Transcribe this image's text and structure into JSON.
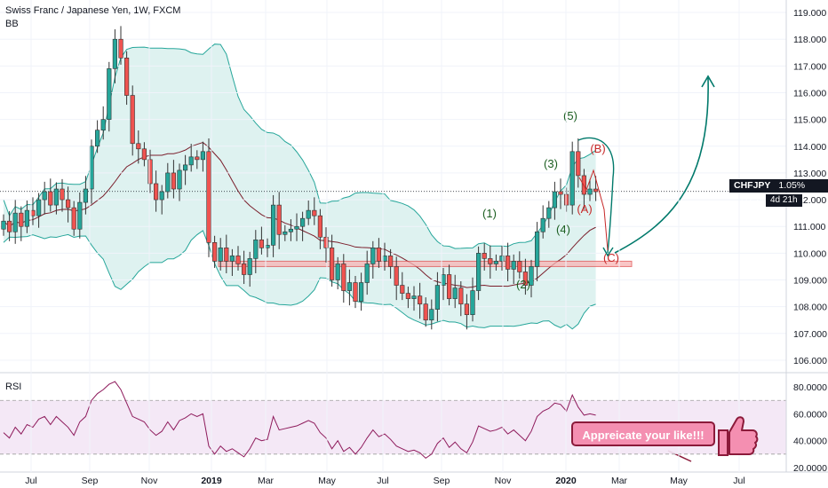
{
  "header": {
    "title": "Swiss Franc / Japanese Yen, 1W, FXCM",
    "indicator": "BB",
    "rsi_label": "RSI"
  },
  "price_badge": {
    "symbol": "CHFJPY",
    "change": "1.05%",
    "price": "112.309"
  },
  "time_badge": "4d 21h",
  "callout": "Appreicate your like!!!",
  "colors": {
    "up": "#26a69a",
    "down": "#ef5350",
    "band_fill": "#d6efec",
    "band_line": "#26a69a",
    "basis": "#7b1f2c",
    "zone_fill": "#f8b4b4",
    "zone_stroke": "#e04b4b",
    "wave_green": "#1b5e20",
    "wave_red": "#c62828",
    "arrow_teal": "#00796b",
    "rsi_line": "#8e1b5c",
    "rsi_bg": "#f3e5f5"
  },
  "icons": {
    "like": "thumbs-up-icon"
  },
  "chart_data": {
    "type": "candlestick",
    "title": "Swiss Franc / Japanese Yen, 1W, FXCM",
    "symbol": "CHFJPY",
    "timeframe": "1W",
    "source": "FXCM",
    "last_price": 112.309,
    "x_tick_labels": [
      "Jul",
      "Sep",
      "Nov",
      "2019",
      "Mar",
      "May",
      "Jul",
      "Sep",
      "Nov",
      "2020",
      "Mar",
      "May",
      "Jul"
    ],
    "y_tick_labels": [
      "119.000",
      "118.000",
      "117.000",
      "116.000",
      "115.000",
      "114.000",
      "113.000",
      "112.000",
      "111.000",
      "110.000",
      "109.000",
      "108.000",
      "107.000",
      "106.000"
    ],
    "ylim": [
      105.6,
      119.4
    ],
    "close": [
      111.2,
      110.8,
      111.5,
      111.0,
      111.6,
      111.4,
      112.0,
      112.3,
      111.8,
      112.4,
      112.0,
      111.7,
      110.9,
      111.9,
      112.4,
      114.0,
      114.6,
      115.0,
      116.9,
      118.0,
      117.3,
      115.9,
      114.1,
      113.9,
      113.5,
      112.6,
      112.0,
      112.3,
      113.0,
      112.4,
      113.1,
      113.3,
      113.6,
      113.5,
      113.8,
      110.4,
      109.7,
      110.2,
      109.7,
      109.9,
      109.6,
      109.2,
      109.8,
      110.5,
      110.2,
      110.3,
      111.8,
      110.7,
      110.8,
      110.9,
      111.0,
      111.3,
      111.6,
      111.4,
      110.6,
      110.2,
      109.0,
      109.6,
      108.6,
      108.9,
      108.2,
      108.9,
      109.6,
      110.2,
      109.7,
      109.9,
      109.5,
      108.8,
      108.5,
      108.3,
      108.4,
      108.1,
      107.5,
      107.9,
      108.8,
      109.2,
      108.3,
      108.7,
      108.1,
      107.7,
      108.6,
      110.0,
      109.8,
      109.6,
      109.7,
      109.9,
      109.4,
      109.7,
      109.3,
      108.8,
      109.5,
      110.8,
      111.3,
      111.7,
      112.3,
      112.2,
      111.8,
      113.8,
      112.9,
      112.2,
      112.4,
      112.3
    ],
    "rsi": [
      46,
      42,
      50,
      45,
      52,
      50,
      56,
      58,
      52,
      58,
      54,
      50,
      44,
      54,
      58,
      70,
      75,
      78,
      82,
      84,
      78,
      68,
      58,
      56,
      54,
      48,
      44,
      47,
      54,
      48,
      55,
      57,
      60,
      58,
      60,
      36,
      30,
      36,
      32,
      34,
      31,
      28,
      34,
      42,
      40,
      41,
      58,
      48,
      49,
      50,
      51,
      53,
      55,
      53,
      46,
      42,
      34,
      40,
      32,
      35,
      30,
      35,
      42,
      48,
      43,
      45,
      41,
      36,
      34,
      32,
      33,
      31,
      27,
      30,
      38,
      42,
      35,
      39,
      34,
      31,
      39,
      51,
      49,
      47,
      48,
      50,
      45,
      48,
      44,
      40,
      47,
      58,
      62,
      64,
      68,
      67,
      62,
      74,
      65,
      59,
      60,
      59
    ],
    "rsi_y_tick_labels": [
      "80.0000",
      "60.0000",
      "40.0000",
      "20.0000"
    ],
    "rsi_ylim": [
      18,
      88
    ],
    "support_zone": [
      109.5,
      109.7
    ],
    "wave_labels": [
      "(1)",
      "(2)",
      "(3)",
      "(4)",
      "(5)",
      "(A)",
      "(B)",
      "(C)"
    ]
  }
}
